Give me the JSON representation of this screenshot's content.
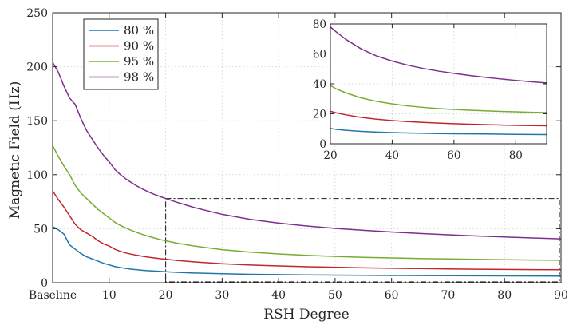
{
  "chart_data": [
    {
      "type": "line",
      "title": "",
      "xlabel": "RSH Degree",
      "ylabel": "Magnetic Field (Hz)",
      "xlim": [
        0,
        90
      ],
      "ylim": [
        0,
        250
      ],
      "grid": true,
      "grid_style": "dotted",
      "legend_position": "top-left",
      "x_ticks": [
        {
          "value": 0,
          "label": "Baseline"
        },
        {
          "value": 10,
          "label": "10"
        },
        {
          "value": 20,
          "label": "20"
        },
        {
          "value": 30,
          "label": "30"
        },
        {
          "value": 40,
          "label": "40"
        },
        {
          "value": 50,
          "label": "50"
        },
        {
          "value": 60,
          "label": "60"
        },
        {
          "value": 70,
          "label": "70"
        },
        {
          "value": 80,
          "label": "80"
        },
        {
          "value": 90,
          "label": "90"
        }
      ],
      "y_ticks": [
        {
          "value": 0,
          "label": "0"
        },
        {
          "value": 50,
          "label": "50"
        },
        {
          "value": 100,
          "label": "100"
        },
        {
          "value": 150,
          "label": "150"
        },
        {
          "value": 200,
          "label": "200"
        },
        {
          "value": 250,
          "label": "250"
        }
      ],
      "zoom_box": {
        "x": [
          20,
          90
        ],
        "y": [
          0,
          78
        ]
      },
      "series": [
        {
          "name": "80 %",
          "color": "#1f77a8",
          "points": [
            [
              0,
              52
            ],
            [
              1,
              49
            ],
            [
              2,
              45
            ],
            [
              3,
              35
            ],
            [
              4,
              31
            ],
            [
              5,
              27
            ],
            [
              6,
              24
            ],
            [
              7,
              22
            ],
            [
              8,
              20
            ],
            [
              9,
              18
            ],
            [
              10,
              16.5
            ],
            [
              11,
              15
            ],
            [
              12,
              14
            ],
            [
              13,
              13.2
            ],
            [
              14,
              12.5
            ],
            [
              15,
              12
            ],
            [
              16,
              11.5
            ],
            [
              17,
              11.1
            ],
            [
              18,
              10.8
            ],
            [
              19,
              10.5
            ],
            [
              20,
              10.2
            ],
            [
              22,
              9.6
            ],
            [
              25,
              9
            ],
            [
              30,
              8.3
            ],
            [
              35,
              7.8
            ],
            [
              40,
              7.5
            ],
            [
              45,
              7.2
            ],
            [
              50,
              7
            ],
            [
              55,
              6.8
            ],
            [
              60,
              6.7
            ],
            [
              65,
              6.6
            ],
            [
              70,
              6.5
            ],
            [
              75,
              6.4
            ],
            [
              80,
              6.3
            ],
            [
              85,
              6.2
            ],
            [
              90,
              6.1
            ]
          ]
        },
        {
          "name": "90 %",
          "color": "#c1272d",
          "points": [
            [
              0,
              85
            ],
            [
              1,
              77
            ],
            [
              2,
              70
            ],
            [
              3,
              62
            ],
            [
              4,
              54
            ],
            [
              5,
              49
            ],
            [
              6,
              46
            ],
            [
              7,
              43
            ],
            [
              8,
              39
            ],
            [
              9,
              36
            ],
            [
              10,
              34
            ],
            [
              11,
              31
            ],
            [
              12,
              29
            ],
            [
              13,
              27.5
            ],
            [
              14,
              26.3
            ],
            [
              15,
              25.3
            ],
            [
              16,
              24.4
            ],
            [
              17,
              23.6
            ],
            [
              18,
              22.9
            ],
            [
              19,
              22.3
            ],
            [
              20,
              21.7
            ],
            [
              22,
              20.6
            ],
            [
              25,
              19.3
            ],
            [
              30,
              17.6
            ],
            [
              35,
              16.4
            ],
            [
              40,
              15.5
            ],
            [
              45,
              14.8
            ],
            [
              50,
              14.3
            ],
            [
              55,
              13.8
            ],
            [
              60,
              13.4
            ],
            [
              65,
              13.1
            ],
            [
              70,
              12.8
            ],
            [
              75,
              12.5
            ],
            [
              80,
              12.3
            ],
            [
              85,
              12.1
            ],
            [
              90,
              12
            ]
          ]
        },
        {
          "name": "95 %",
          "color": "#77ac30",
          "points": [
            [
              0,
              127
            ],
            [
              1,
              117
            ],
            [
              2,
              108
            ],
            [
              3,
              100
            ],
            [
              4,
              90
            ],
            [
              5,
              83
            ],
            [
              6,
              78
            ],
            [
              7,
              73
            ],
            [
              8,
              68
            ],
            [
              9,
              64
            ],
            [
              10,
              60
            ],
            [
              11,
              56
            ],
            [
              12,
              53
            ],
            [
              13,
              50.5
            ],
            [
              14,
              48.3
            ],
            [
              15,
              46.3
            ],
            [
              16,
              44.5
            ],
            [
              17,
              42.9
            ],
            [
              18,
              41.4
            ],
            [
              19,
              40
            ],
            [
              20,
              38.8
            ],
            [
              22,
              36.6
            ],
            [
              25,
              34
            ],
            [
              30,
              30.6
            ],
            [
              35,
              28.3
            ],
            [
              40,
              26.6
            ],
            [
              45,
              25.3
            ],
            [
              50,
              24.3
            ],
            [
              55,
              23.5
            ],
            [
              60,
              22.9
            ],
            [
              65,
              22.4
            ],
            [
              70,
              22
            ],
            [
              75,
              21.6
            ],
            [
              80,
              21.3
            ],
            [
              85,
              21
            ],
            [
              90,
              20.8
            ]
          ]
        },
        {
          "name": "98 %",
          "color": "#7e2f8e",
          "points": [
            [
              0,
              204
            ],
            [
              1,
              195
            ],
            [
              2,
              182
            ],
            [
              3,
              171
            ],
            [
              4,
              165
            ],
            [
              5,
              152
            ],
            [
              6,
              141
            ],
            [
              7,
              133
            ],
            [
              8,
              125
            ],
            [
              9,
              118
            ],
            [
              10,
              112
            ],
            [
              11,
              105
            ],
            [
              12,
              100
            ],
            [
              13,
              96
            ],
            [
              14,
              92.5
            ],
            [
              15,
              89.3
            ],
            [
              16,
              86.5
            ],
            [
              17,
              84
            ],
            [
              18,
              81.8
            ],
            [
              19,
              79.8
            ],
            [
              20,
              78
            ],
            [
              22,
              74.5
            ],
            [
              25,
              69.7
            ],
            [
              30,
              63.3
            ],
            [
              35,
              58.6
            ],
            [
              40,
              55.2
            ],
            [
              45,
              52.5
            ],
            [
              50,
              50.3
            ],
            [
              55,
              48.5
            ],
            [
              60,
              47
            ],
            [
              65,
              45.6
            ],
            [
              70,
              44.4
            ],
            [
              75,
              43.3
            ],
            [
              80,
              42.3
            ],
            [
              85,
              41.4
            ],
            [
              90,
              40.6
            ]
          ]
        }
      ]
    },
    {
      "type": "line",
      "title": "",
      "xlabel": "",
      "ylabel": "",
      "xlim": [
        20,
        90
      ],
      "ylim": [
        0,
        80
      ],
      "grid": true,
      "x_ticks": [
        {
          "value": 20,
          "label": "20"
        },
        {
          "value": 40,
          "label": "40"
        },
        {
          "value": 60,
          "label": "60"
        },
        {
          "value": 80,
          "label": "80"
        }
      ],
      "y_ticks": [
        {
          "value": 0,
          "label": "0"
        },
        {
          "value": 20,
          "label": "20"
        },
        {
          "value": 40,
          "label": "40"
        },
        {
          "value": 60,
          "label": "60"
        },
        {
          "value": 80,
          "label": "80"
        }
      ],
      "series_ref": "same as main chart, zoomed to degrees 20–90"
    }
  ]
}
